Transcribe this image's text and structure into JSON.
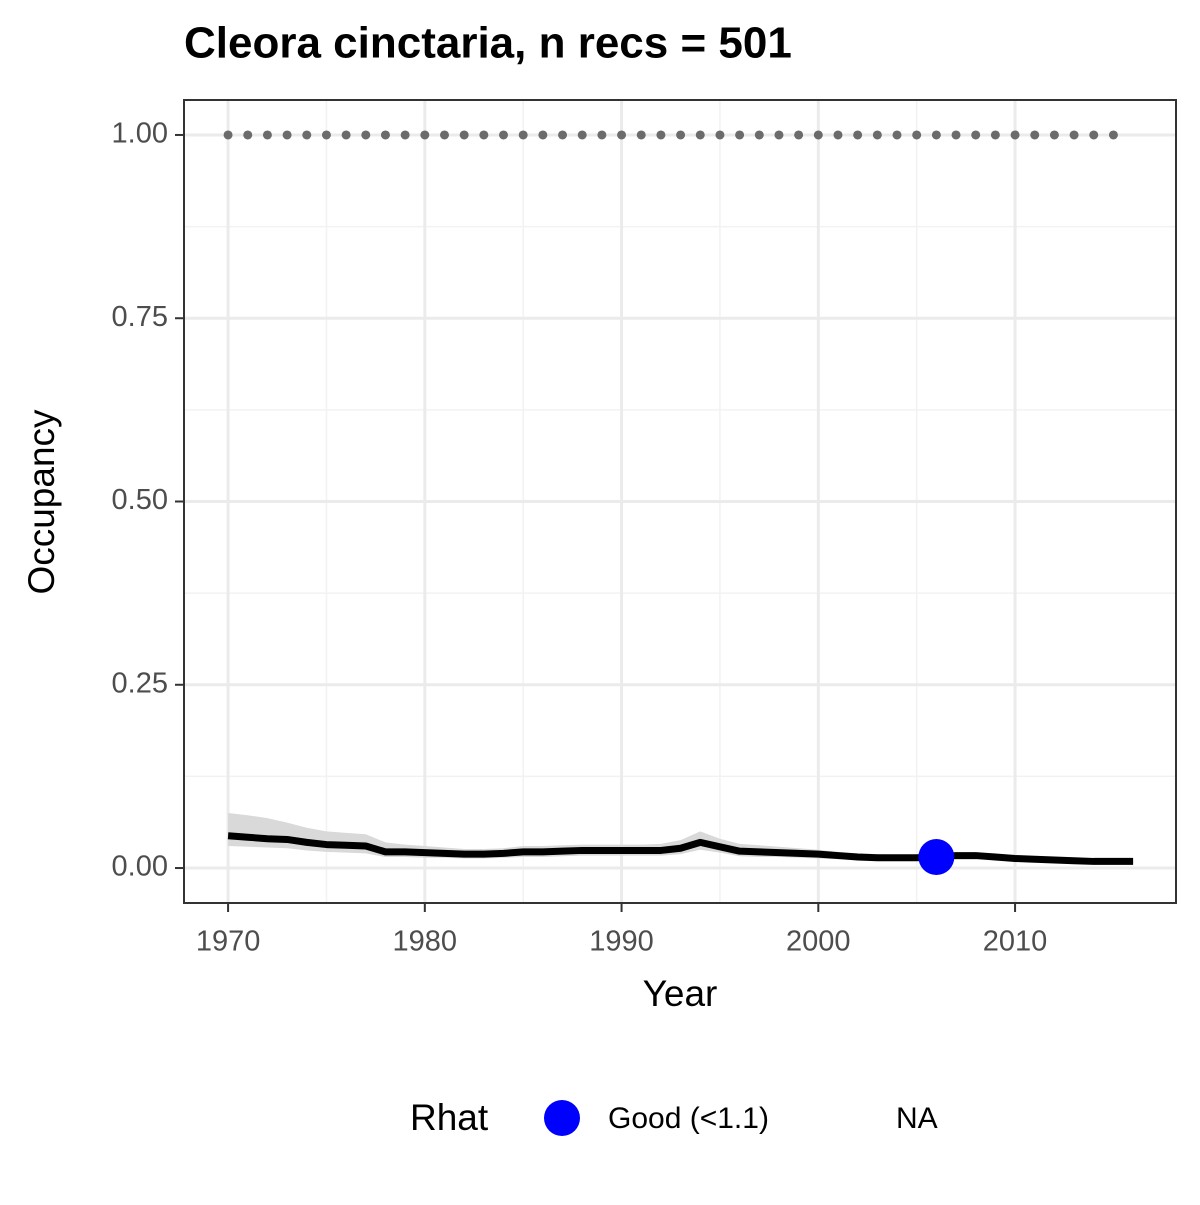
{
  "chart_data": {
    "type": "line",
    "title": "Cleora cinctaria, n recs = 501",
    "x_label": "Year",
    "y_label": "Occupancy",
    "x": [
      1970,
      1971,
      1972,
      1973,
      1974,
      1975,
      1976,
      1977,
      1978,
      1979,
      1980,
      1981,
      1982,
      1983,
      1984,
      1985,
      1986,
      1987,
      1988,
      1989,
      1990,
      1991,
      1992,
      1993,
      1994,
      1995,
      1996,
      1997,
      1998,
      1999,
      2000,
      2001,
      2002,
      2003,
      2004,
      2005,
      2006,
      2007,
      2008,
      2009,
      2010,
      2011,
      2012,
      2013,
      2014,
      2015,
      2016
    ],
    "series": [
      {
        "color": "#000000",
        "values": [
          0.044,
          0.042,
          0.04,
          0.039,
          0.035,
          0.032,
          0.031,
          0.03,
          0.022,
          0.022,
          0.021,
          0.02,
          0.019,
          0.019,
          0.02,
          0.022,
          0.022,
          0.023,
          0.024,
          0.024,
          0.024,
          0.024,
          0.024,
          0.027,
          0.035,
          0.029,
          0.023,
          0.022,
          0.021,
          0.02,
          0.019,
          0.017,
          0.015,
          0.014,
          0.014,
          0.014,
          0.015,
          0.017,
          0.017,
          0.015,
          0.013,
          0.012,
          0.011,
          0.01,
          0.009,
          0.009,
          0.009
        ]
      }
    ],
    "ribbon": {
      "color": "#d9d9d9",
      "upper": [
        0.075,
        0.072,
        0.068,
        0.062,
        0.055,
        0.05,
        0.048,
        0.046,
        0.035,
        0.032,
        0.03,
        0.028,
        0.026,
        0.026,
        0.027,
        0.03,
        0.03,
        0.031,
        0.032,
        0.032,
        0.032,
        0.032,
        0.033,
        0.038,
        0.05,
        0.04,
        0.033,
        0.031,
        0.029,
        0.027,
        0.025,
        0.022,
        0.02,
        0.019,
        0.018,
        0.018,
        0.019,
        0.021,
        0.021,
        0.019,
        0.017,
        0.016,
        0.014,
        0.013,
        0.012,
        0.012,
        0.012
      ],
      "lower": [
        0.03,
        0.029,
        0.028,
        0.027,
        0.024,
        0.022,
        0.021,
        0.02,
        0.015,
        0.015,
        0.014,
        0.014,
        0.013,
        0.013,
        0.014,
        0.015,
        0.015,
        0.016,
        0.017,
        0.017,
        0.017,
        0.017,
        0.017,
        0.019,
        0.025,
        0.021,
        0.016,
        0.015,
        0.015,
        0.014,
        0.013,
        0.012,
        0.011,
        0.01,
        0.01,
        0.01,
        0.011,
        0.012,
        0.012,
        0.011,
        0.009,
        0.008,
        0.008,
        0.007,
        0.006,
        0.006,
        0.006
      ]
    },
    "reference": {
      "color": "#6b6b6b",
      "x": [
        1970,
        1971,
        1972,
        1973,
        1974,
        1975,
        1976,
        1977,
        1978,
        1979,
        1980,
        1981,
        1982,
        1983,
        1984,
        1985,
        1986,
        1987,
        1988,
        1989,
        1990,
        1991,
        1992,
        1993,
        1994,
        1995,
        1996,
        1997,
        1998,
        1999,
        2000,
        2001,
        2002,
        2003,
        2004,
        2005,
        2006,
        2007,
        2008,
        2009,
        2010,
        2011,
        2012,
        2013,
        2014,
        2015
      ],
      "values": [
        1,
        1,
        1,
        1,
        1,
        1,
        1,
        1,
        1,
        1,
        1,
        1,
        1,
        1,
        1,
        1,
        1,
        1,
        1,
        1,
        1,
        1,
        1,
        1,
        1,
        1,
        1,
        1,
        1,
        1,
        1,
        1,
        1,
        1,
        1,
        1,
        1,
        1,
        1,
        1,
        1,
        1,
        1,
        1,
        1,
        1
      ]
    },
    "points": {
      "color": "#0000ff",
      "x": [
        2006
      ],
      "values": [
        0.015
      ]
    },
    "legend": {
      "title": "Rhat",
      "entries": [
        {
          "label": "Good (<1.1)",
          "color": "#0000ff"
        },
        {
          "label": "NA"
        }
      ]
    },
    "xlim": [
      1967.76,
      2018.18
    ],
    "ylim": [
      -0.0477,
      1.0477
    ],
    "xticks": [
      1970,
      1980,
      1990,
      2000,
      2010
    ],
    "yticks": [
      {
        "value": 0,
        "label": "0.00"
      },
      {
        "value": 0.25,
        "label": "0.25"
      },
      {
        "value": 0.5,
        "label": "0.50"
      },
      {
        "value": 0.75,
        "label": "0.75"
      },
      {
        "value": 1,
        "label": "1.00"
      }
    ],
    "grid": true
  }
}
